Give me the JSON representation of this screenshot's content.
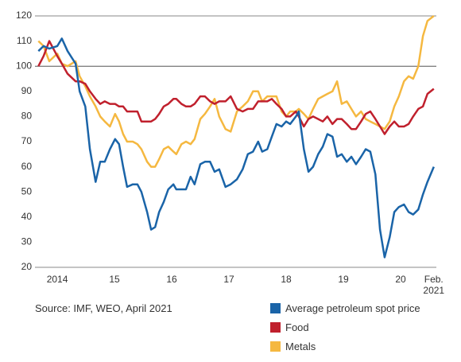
{
  "chart_data": {
    "type": "line",
    "source": "Source: IMF, WEO, April 2021",
    "x": [
      2014.17,
      2014.26,
      2014.36,
      2014.5,
      2014.58,
      2014.68,
      2014.82,
      2014.89,
      2014.99,
      2015.07,
      2015.17,
      2015.25,
      2015.33,
      2015.42,
      2015.51,
      2015.58,
      2015.65,
      2015.72,
      2015.82,
      2015.9,
      2015.97,
      2016.07,
      2016.14,
      2016.21,
      2016.28,
      2016.36,
      2016.44,
      2016.53,
      2016.58,
      2016.67,
      2016.75,
      2016.83,
      2016.9,
      2017.0,
      2017.08,
      2017.17,
      2017.25,
      2017.33,
      2017.44,
      2017.53,
      2017.64,
      2017.74,
      2017.83,
      2017.92,
      2018.01,
      2018.08,
      2018.17,
      2018.25,
      2018.33,
      2018.42,
      2018.5,
      2018.57,
      2018.67,
      2018.72,
      2018.81,
      2018.89,
      2018.97,
      2019.06,
      2019.14,
      2019.22,
      2019.31,
      2019.39,
      2019.47,
      2019.56,
      2019.64,
      2019.72,
      2019.81,
      2019.89,
      2019.97,
      2020.06,
      2020.14,
      2020.22,
      2020.31,
      2020.39,
      2020.47,
      2020.56,
      2020.64,
      2020.72,
      2020.81,
      2020.89,
      2020.97,
      2021.08
    ],
    "series": [
      {
        "name": "Average petroleum spot price",
        "color": "#1a64a8",
        "values": [
          106,
          108,
          107,
          108,
          111,
          106,
          101,
          90,
          84,
          67,
          54,
          62,
          62,
          67,
          71,
          69,
          60,
          52,
          53,
          53,
          50,
          42,
          35,
          36,
          42,
          46,
          51,
          53,
          51,
          51,
          51,
          56,
          53,
          61,
          62,
          62,
          58,
          59,
          52,
          53,
          55,
          59,
          65,
          66,
          70,
          66,
          67,
          72,
          77,
          76,
          78,
          77,
          80,
          82,
          67,
          58,
          60,
          65,
          68,
          73,
          72,
          64,
          65,
          62,
          64,
          61,
          64,
          67,
          66,
          57,
          35,
          24,
          32,
          42,
          44,
          45,
          42,
          41,
          43,
          49,
          54,
          60
        ]
      },
      {
        "name": "Food",
        "color": "#c0202d",
        "values": [
          100,
          104,
          110,
          104,
          101,
          97,
          94,
          94,
          93,
          90,
          87,
          85,
          86,
          85,
          85,
          84,
          84,
          82,
          82,
          82,
          78,
          78,
          78,
          79,
          81,
          84,
          85,
          87,
          87,
          85,
          84,
          84,
          85,
          88,
          88,
          86,
          85,
          86,
          86,
          88,
          83,
          82,
          83,
          83,
          86,
          86,
          86,
          87,
          85,
          83,
          80,
          80,
          82,
          80,
          76,
          79,
          80,
          79,
          78,
          80,
          77,
          79,
          79,
          77,
          75,
          75,
          78,
          81,
          82,
          79,
          76,
          73,
          76,
          78,
          76,
          76,
          77,
          80,
          83,
          84,
          89,
          91
        ]
      },
      {
        "name": "Metals",
        "color": "#f5b840",
        "values": [
          110,
          108,
          102,
          105,
          101,
          100,
          102,
          96,
          92,
          88,
          84,
          80,
          78,
          76,
          81,
          78,
          73,
          70,
          70,
          69,
          67,
          62,
          60,
          60,
          63,
          67,
          68,
          66,
          65,
          69,
          70,
          69,
          71,
          79,
          81,
          84,
          87,
          80,
          75,
          74,
          82,
          84,
          86,
          90,
          90,
          86,
          88,
          88,
          88,
          82,
          80,
          82,
          82,
          83,
          81,
          79,
          83,
          87,
          88,
          89,
          90,
          94,
          85,
          86,
          83,
          80,
          82,
          79,
          78,
          77,
          76,
          75,
          78,
          84,
          88,
          94,
          96,
          95,
          100,
          112,
          118,
          120
        ]
      }
    ],
    "xlim": [
      2014.11,
      2021.125
    ],
    "xticks": [
      {
        "value": 2014.5,
        "label": "2014"
      },
      {
        "value": 2015.5,
        "label": "15"
      },
      {
        "value": 2016.5,
        "label": "16"
      },
      {
        "value": 2017.5,
        "label": "17"
      },
      {
        "value": 2018.5,
        "label": "18"
      },
      {
        "value": 2019.5,
        "label": "19"
      },
      {
        "value": 2020.5,
        "label": "20"
      },
      {
        "value": 2021.08,
        "label": "Feb. 2021"
      }
    ],
    "ylim": [
      20,
      120
    ],
    "yticks": [
      20,
      30,
      40,
      50,
      60,
      70,
      80,
      90,
      100,
      110,
      120
    ],
    "reference_line": 100
  }
}
